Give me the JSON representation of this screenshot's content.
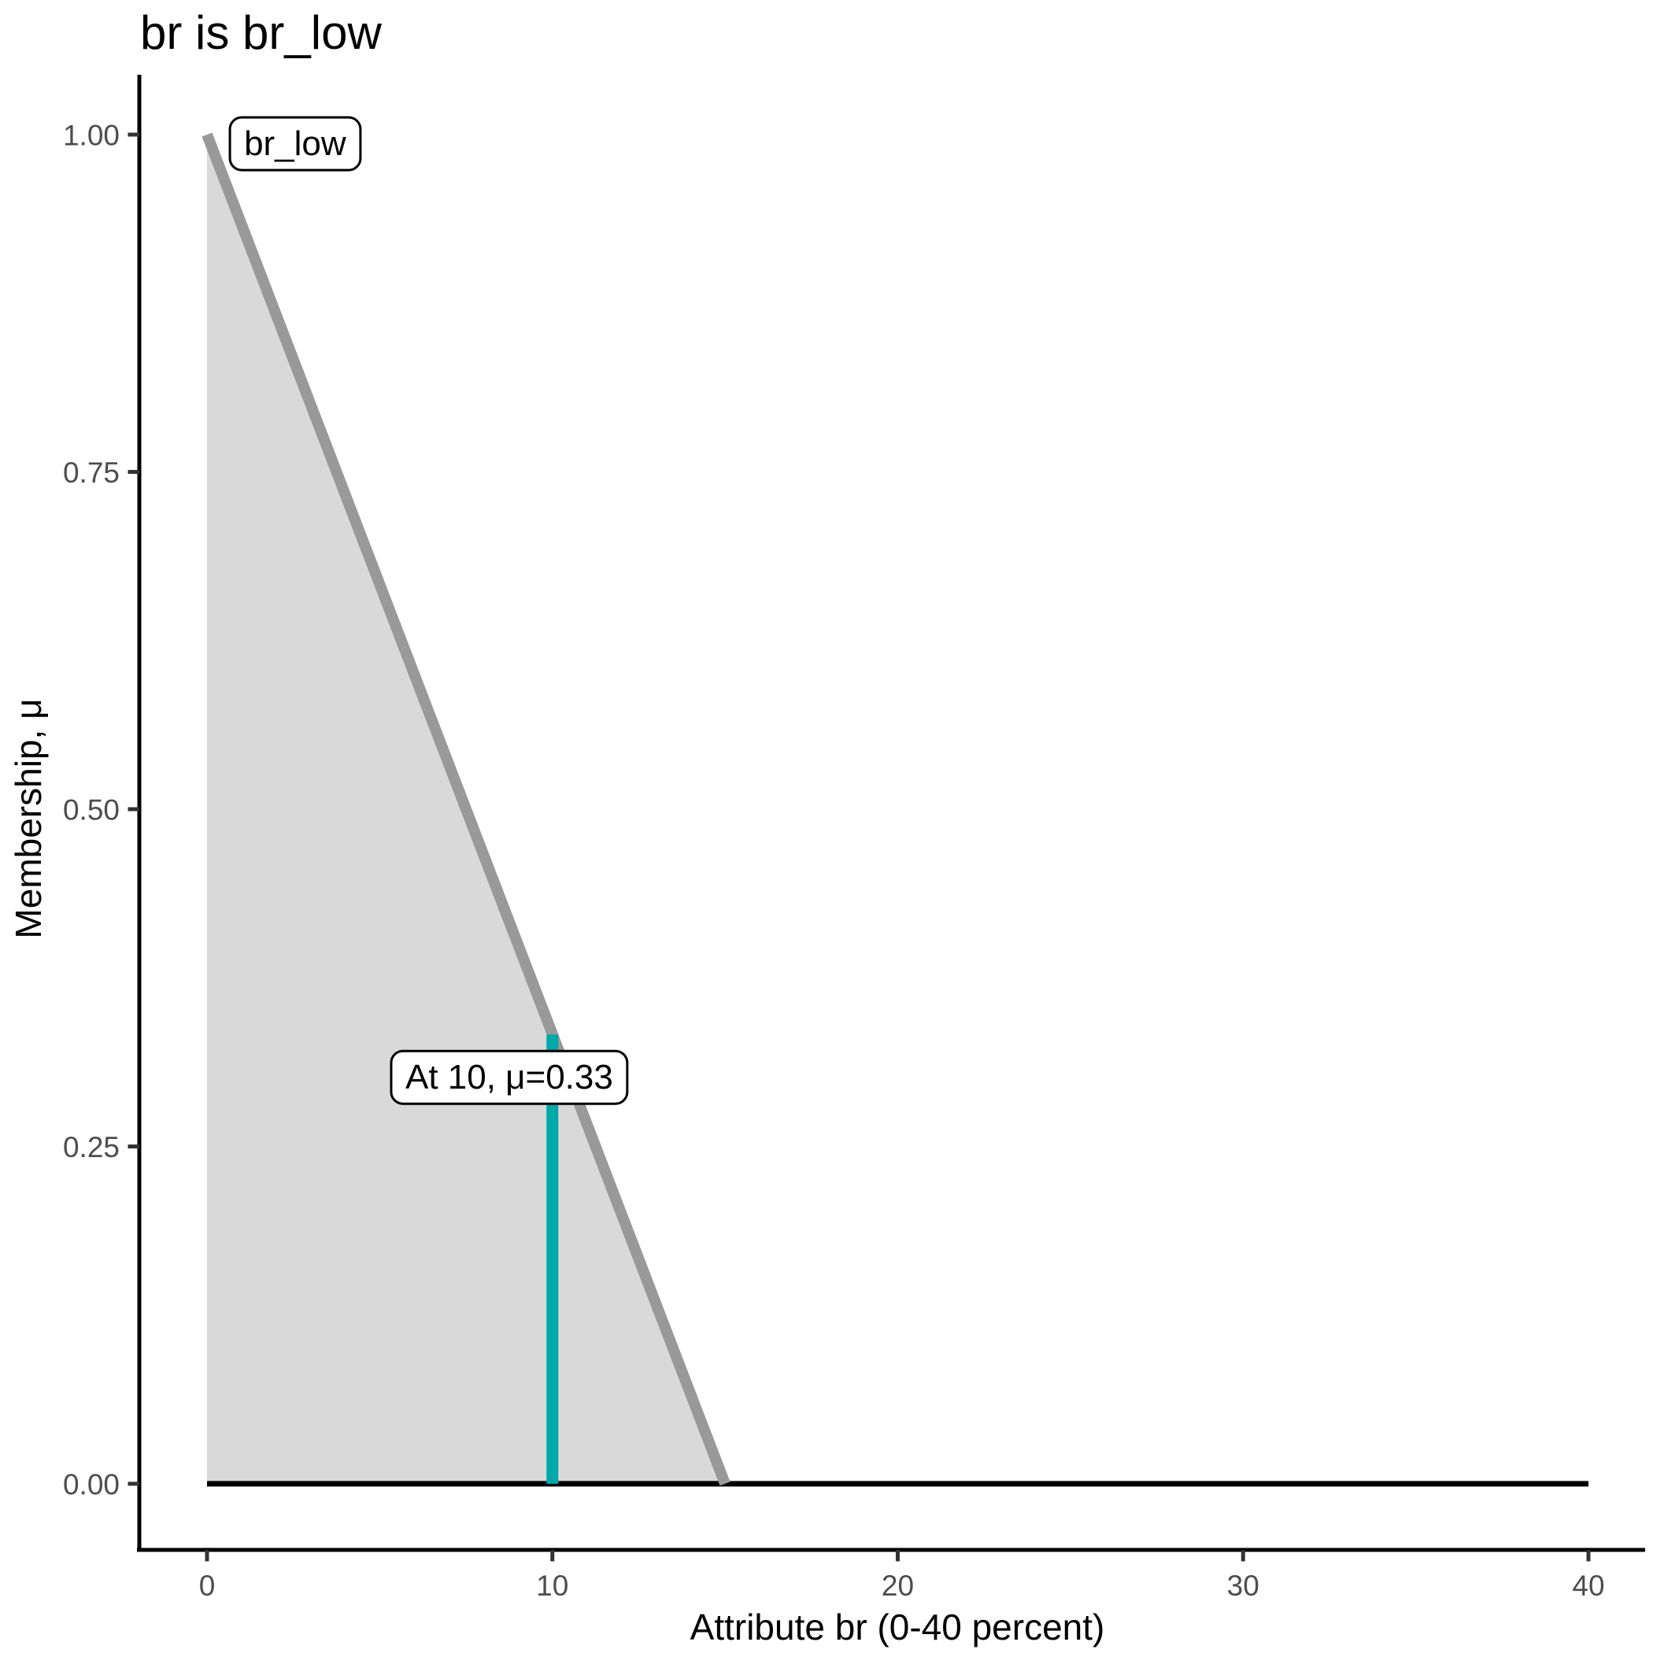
{
  "chart_data": {
    "type": "area",
    "title": "br is br_low",
    "xlabel": "Attribute br (0-40 percent)",
    "ylabel": "Membership, μ",
    "xlim": [
      0,
      40
    ],
    "ylim": [
      0,
      1
    ],
    "grid": false,
    "legend": "none",
    "x_ticks": [
      0,
      10,
      20,
      30,
      40
    ],
    "x_tick_labels": [
      "0",
      "10",
      "20",
      "30",
      "40"
    ],
    "y_ticks": [
      0,
      0.25,
      0.5,
      0.75,
      1
    ],
    "y_tick_labels": [
      "0.00",
      "0.25",
      "0.50",
      "0.75",
      "1.00"
    ],
    "membership_function": {
      "set_name": "br_low",
      "shape": "left-shoulder triangular, linear from (0,1) to (15,0), then 0 up to 40",
      "x": [
        0,
        15,
        40
      ],
      "mu": [
        1,
        0,
        0
      ]
    },
    "input_evaluation": {
      "input_x": 10,
      "mu_at_input": 0.33
    },
    "area": {
      "name": "br_low-membership-area",
      "points": [
        [
          0,
          0
        ],
        [
          0,
          1
        ],
        [
          15,
          0
        ]
      ],
      "fill": "#D9D9D9"
    },
    "series": [
      {
        "name": "universe-baseline",
        "points": [
          [
            0,
            0
          ],
          [
            40,
            0
          ]
        ],
        "color": "#000000",
        "stroke_width": 7
      },
      {
        "name": "membership-line-br-low",
        "points": [
          [
            0,
            1
          ],
          [
            15,
            0
          ]
        ],
        "color": "#999999",
        "stroke_width": 14
      },
      {
        "name": "input-value-line",
        "points": [
          [
            10,
            0
          ],
          [
            10,
            0.333
          ]
        ],
        "color": "#00A9A9",
        "stroke_width": 15
      }
    ],
    "annotations": [
      {
        "id": "set-label",
        "text": "br_low",
        "x": 2.55,
        "y": 0.994
      },
      {
        "id": "evaluation-label",
        "text": "At 10, μ=0.33",
        "x": 8.75,
        "y": 0.302
      }
    ],
    "colors": {
      "accent_teal": "#00A9A9",
      "membership_line_gray": "#999999",
      "area_fill_gray": "#D9D9D9",
      "axis_text_gray": "#4D4D4D",
      "axis_line_black": "#000000",
      "tick_mark": "#333333",
      "background": "#FFFFFF"
    }
  }
}
